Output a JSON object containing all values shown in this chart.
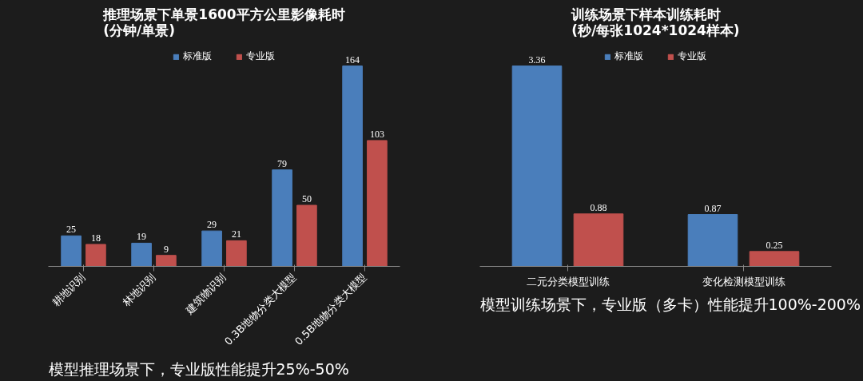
{
  "chart_data": [
    {
      "type": "bar",
      "title": "推理场景下单景1600平方公里影像耗时\n(分钟/单景)",
      "categories": [
        "耕地识别",
        "林地识别",
        "建筑物识别",
        "0.3B地物分类大模型",
        "0.5B地物分类大模型"
      ],
      "series": [
        {
          "name": "标准版",
          "color": "#4a7ebb",
          "values": [
            25,
            19,
            29,
            79,
            164
          ]
        },
        {
          "name": "专业版",
          "color": "#c0504d",
          "values": [
            18,
            9,
            21,
            50,
            103
          ]
        }
      ],
      "data_labels": true,
      "legend": "top",
      "grid": false,
      "annotations": [
        "模型推理场景下，专业版性能提升25%-50%"
      ]
    },
    {
      "type": "bar",
      "title": "训练场景下样本训练耗时\n(秒/每张1024*1024样本)",
      "categories": [
        "二元分类模型训练",
        "变化检测模型训练"
      ],
      "series": [
        {
          "name": "标准版",
          "color": "#4a7ebb",
          "values": [
            3.36,
            0.87
          ]
        },
        {
          "name": "专业版",
          "color": "#c0504d",
          "values": [
            0.88,
            0.25
          ]
        }
      ],
      "data_labels": true,
      "legend": "top",
      "grid": false,
      "annotations": [
        "模型训练场景下，专业版（多卡）性能提升100%-200%"
      ]
    }
  ]
}
